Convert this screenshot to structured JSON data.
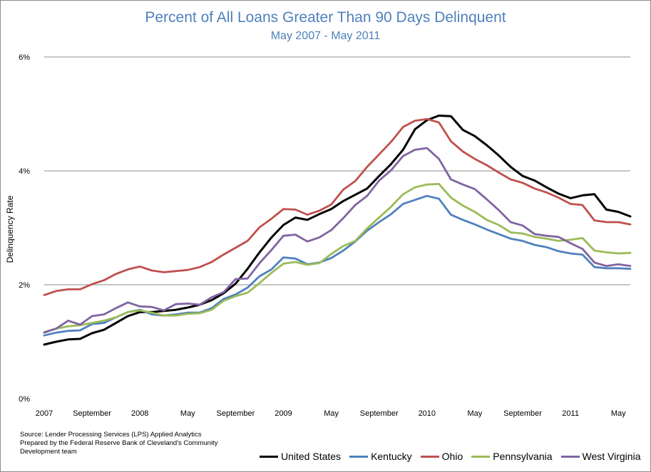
{
  "title": "Percent of All Loans Greater Than 90 Days Delinquent",
  "subtitle": "May 2007 - May 2011",
  "source_lines": [
    "Source: Lender Processing Services (LPS) Applied Analytics",
    "Prepared by the Federal Reserve Bank of Cleveland's Community",
    "Development team"
  ],
  "chart_data": {
    "type": "line",
    "title": "Percent of All Loans Greater Than 90 Days Delinquent",
    "subtitle": "May 2007 - May 2011",
    "xlabel": "",
    "ylabel": "Delinquency Rate",
    "ylim": [
      0,
      6
    ],
    "y_ticks": [
      0,
      2,
      4,
      6
    ],
    "y_tick_labels": [
      "0%",
      "2%",
      "4%",
      "6%"
    ],
    "grid": "horizontal",
    "legend": "bottom",
    "x_ticks": [
      {
        "label": "2007",
        "month_index": 0
      },
      {
        "label": "September",
        "month_index": 4
      },
      {
        "label": "2008",
        "month_index": 8
      },
      {
        "label": "May",
        "month_index": 12
      },
      {
        "label": "September",
        "month_index": 16
      },
      {
        "label": "2009",
        "month_index": 20
      },
      {
        "label": "May",
        "month_index": 24
      },
      {
        "label": "September",
        "month_index": 28
      },
      {
        "label": "2010",
        "month_index": 32
      },
      {
        "label": "May",
        "month_index": 36
      },
      {
        "label": "September",
        "month_index": 40
      },
      {
        "label": "2011",
        "month_index": 44
      },
      {
        "label": "May",
        "month_index": 48
      }
    ],
    "series": [
      {
        "name": "United States",
        "color": "#000000",
        "values": [
          0.95,
          1.0,
          1.04,
          1.05,
          1.15,
          1.21,
          1.33,
          1.45,
          1.52,
          1.52,
          1.54,
          1.56,
          1.6,
          1.65,
          1.73,
          1.85,
          2.02,
          2.28,
          2.57,
          2.83,
          3.05,
          3.18,
          3.14,
          3.24,
          3.33,
          3.47,
          3.58,
          3.69,
          3.91,
          4.12,
          4.37,
          4.73,
          4.89,
          4.97,
          4.96,
          4.72,
          4.61,
          4.45,
          4.27,
          4.07,
          3.91,
          3.83,
          3.71,
          3.6,
          3.52,
          3.57,
          3.59,
          3.32,
          3.28,
          3.2
        ]
      },
      {
        "name": "Kentucky",
        "color": "#4f81bd",
        "values": [
          1.11,
          1.16,
          1.19,
          1.2,
          1.31,
          1.33,
          1.43,
          1.52,
          1.56,
          1.48,
          1.46,
          1.48,
          1.51,
          1.51,
          1.59,
          1.75,
          1.83,
          1.95,
          2.15,
          2.27,
          2.48,
          2.46,
          2.36,
          2.39,
          2.47,
          2.6,
          2.76,
          2.95,
          3.1,
          3.24,
          3.42,
          3.49,
          3.56,
          3.51,
          3.23,
          3.14,
          3.06,
          2.97,
          2.89,
          2.81,
          2.77,
          2.7,
          2.66,
          2.59,
          2.55,
          2.53,
          2.31,
          2.29,
          2.29,
          2.28
        ]
      },
      {
        "name": "Ohio",
        "color": "#c0504d",
        "values": [
          1.82,
          1.89,
          1.92,
          1.92,
          2.01,
          2.08,
          2.19,
          2.27,
          2.32,
          2.25,
          2.22,
          2.24,
          2.26,
          2.31,
          2.4,
          2.53,
          2.65,
          2.77,
          3.01,
          3.16,
          3.33,
          3.32,
          3.23,
          3.3,
          3.41,
          3.67,
          3.82,
          4.07,
          4.29,
          4.51,
          4.77,
          4.88,
          4.91,
          4.85,
          4.52,
          4.34,
          4.21,
          4.1,
          3.97,
          3.85,
          3.79,
          3.69,
          3.62,
          3.53,
          3.42,
          3.4,
          3.13,
          3.1,
          3.1,
          3.06
        ]
      },
      {
        "name": "Pennsylvania",
        "color": "#9bbb59",
        "values": [
          1.17,
          1.23,
          1.27,
          1.29,
          1.33,
          1.37,
          1.43,
          1.52,
          1.55,
          1.51,
          1.46,
          1.46,
          1.49,
          1.5,
          1.56,
          1.72,
          1.8,
          1.86,
          2.03,
          2.21,
          2.37,
          2.4,
          2.35,
          2.38,
          2.54,
          2.68,
          2.77,
          2.99,
          3.18,
          3.37,
          3.59,
          3.71,
          3.76,
          3.77,
          3.53,
          3.39,
          3.28,
          3.14,
          3.05,
          2.92,
          2.9,
          2.84,
          2.81,
          2.77,
          2.79,
          2.82,
          2.6,
          2.57,
          2.55,
          2.56
        ]
      },
      {
        "name": "West Virginia",
        "color": "#8064a2",
        "values": [
          1.16,
          1.23,
          1.37,
          1.3,
          1.45,
          1.48,
          1.59,
          1.69,
          1.62,
          1.61,
          1.55,
          1.66,
          1.67,
          1.65,
          1.78,
          1.87,
          2.1,
          2.11,
          2.38,
          2.61,
          2.86,
          2.88,
          2.76,
          2.83,
          2.96,
          3.17,
          3.4,
          3.56,
          3.83,
          4.01,
          4.26,
          4.37,
          4.4,
          4.21,
          3.85,
          3.76,
          3.68,
          3.5,
          3.31,
          3.1,
          3.04,
          2.89,
          2.86,
          2.84,
          2.73,
          2.63,
          2.39,
          2.33,
          2.36,
          2.33
        ]
      }
    ]
  }
}
